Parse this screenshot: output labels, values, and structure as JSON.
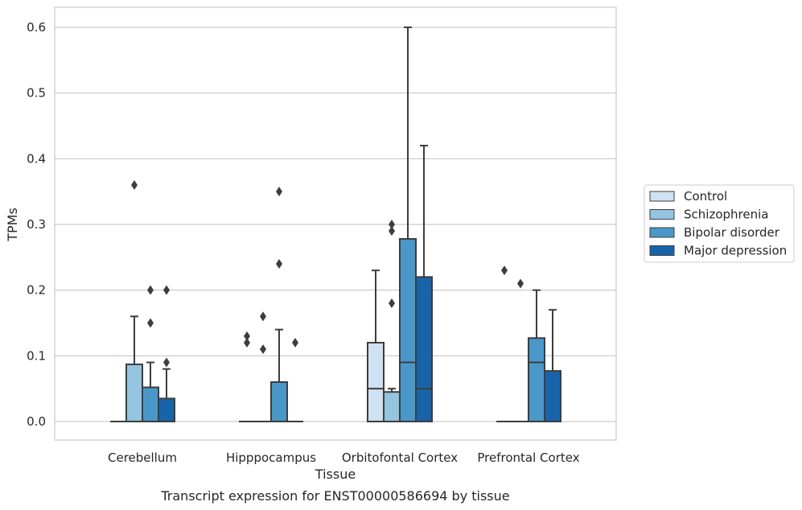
{
  "chart_data": {
    "type": "box",
    "xlabel": "Tissue",
    "ylabel": "TPMs",
    "caption": "Transcript expression for ENST00000586694 by tissue",
    "ylim": [
      -0.03,
      0.63
    ],
    "yticks": [
      0.0,
      0.1,
      0.2,
      0.3,
      0.4,
      0.5,
      0.6
    ],
    "ytick_labels": [
      "0.0",
      "0.1",
      "0.2",
      "0.3",
      "0.4",
      "0.5",
      "0.6"
    ],
    "grid": true,
    "legend_position": "right",
    "categories": [
      "Cerebellum",
      "Hipppocampus",
      "Orbitofontal Cortex",
      "Prefrontal Cortex"
    ],
    "series": [
      {
        "name": "Control",
        "color": "#d0e1f2",
        "boxes": [
          {
            "q1": 0,
            "median": 0,
            "q3": 0,
            "whislo": 0,
            "whishi": 0,
            "fliers": []
          },
          {
            "q1": 0,
            "median": 0,
            "q3": 0,
            "whislo": 0,
            "whishi": 0,
            "fliers": [
              0.12,
              0.13
            ]
          },
          {
            "q1": 0,
            "median": 0.05,
            "q3": 0.12,
            "whislo": 0,
            "whishi": 0.23,
            "fliers": []
          },
          {
            "q1": 0,
            "median": 0,
            "q3": 0,
            "whislo": 0,
            "whishi": 0,
            "fliers": [
              0.23
            ]
          }
        ]
      },
      {
        "name": "Schizophrenia",
        "color": "#94c4df",
        "boxes": [
          {
            "q1": 0,
            "median": 0,
            "q3": 0.087,
            "whislo": 0,
            "whishi": 0.16,
            "fliers": [
              0.36
            ]
          },
          {
            "q1": 0,
            "median": 0,
            "q3": 0,
            "whislo": 0,
            "whishi": 0,
            "fliers": [
              0.11,
              0.16
            ]
          },
          {
            "q1": 0,
            "median": 0,
            "q3": 0.045,
            "whislo": 0,
            "whishi": 0.05,
            "fliers": [
              0.18,
              0.29,
              0.3
            ]
          },
          {
            "q1": 0,
            "median": 0,
            "q3": 0,
            "whislo": 0,
            "whishi": 0,
            "fliers": [
              0.21
            ]
          }
        ]
      },
      {
        "name": "Bipolar disorder",
        "color": "#4a98c9",
        "boxes": [
          {
            "q1": 0,
            "median": 0,
            "q3": 0.052,
            "whislo": 0,
            "whishi": 0.09,
            "fliers": [
              0.15,
              0.2
            ]
          },
          {
            "q1": 0,
            "median": 0,
            "q3": 0.06,
            "whislo": 0,
            "whishi": 0.14,
            "fliers": [
              0.24,
              0.35
            ]
          },
          {
            "q1": 0,
            "median": 0.09,
            "q3": 0.278,
            "whislo": 0,
            "whishi": 0.6,
            "fliers": []
          },
          {
            "q1": 0,
            "median": 0.09,
            "q3": 0.127,
            "whislo": 0,
            "whishi": 0.2,
            "fliers": []
          }
        ]
      },
      {
        "name": "Major depression",
        "color": "#1764ab",
        "boxes": [
          {
            "q1": 0,
            "median": 0,
            "q3": 0.035,
            "whislo": 0,
            "whishi": 0.08,
            "fliers": [
              0.09,
              0.2
            ]
          },
          {
            "q1": 0,
            "median": 0,
            "q3": 0,
            "whislo": 0,
            "whishi": 0,
            "fliers": [
              0.12
            ]
          },
          {
            "q1": 0,
            "median": 0.05,
            "q3": 0.22,
            "whislo": 0,
            "whishi": 0.42,
            "fliers": []
          },
          {
            "q1": 0,
            "median": 0,
            "q3": 0.077,
            "whislo": 0,
            "whishi": 0.17,
            "fliers": []
          }
        ]
      }
    ]
  }
}
